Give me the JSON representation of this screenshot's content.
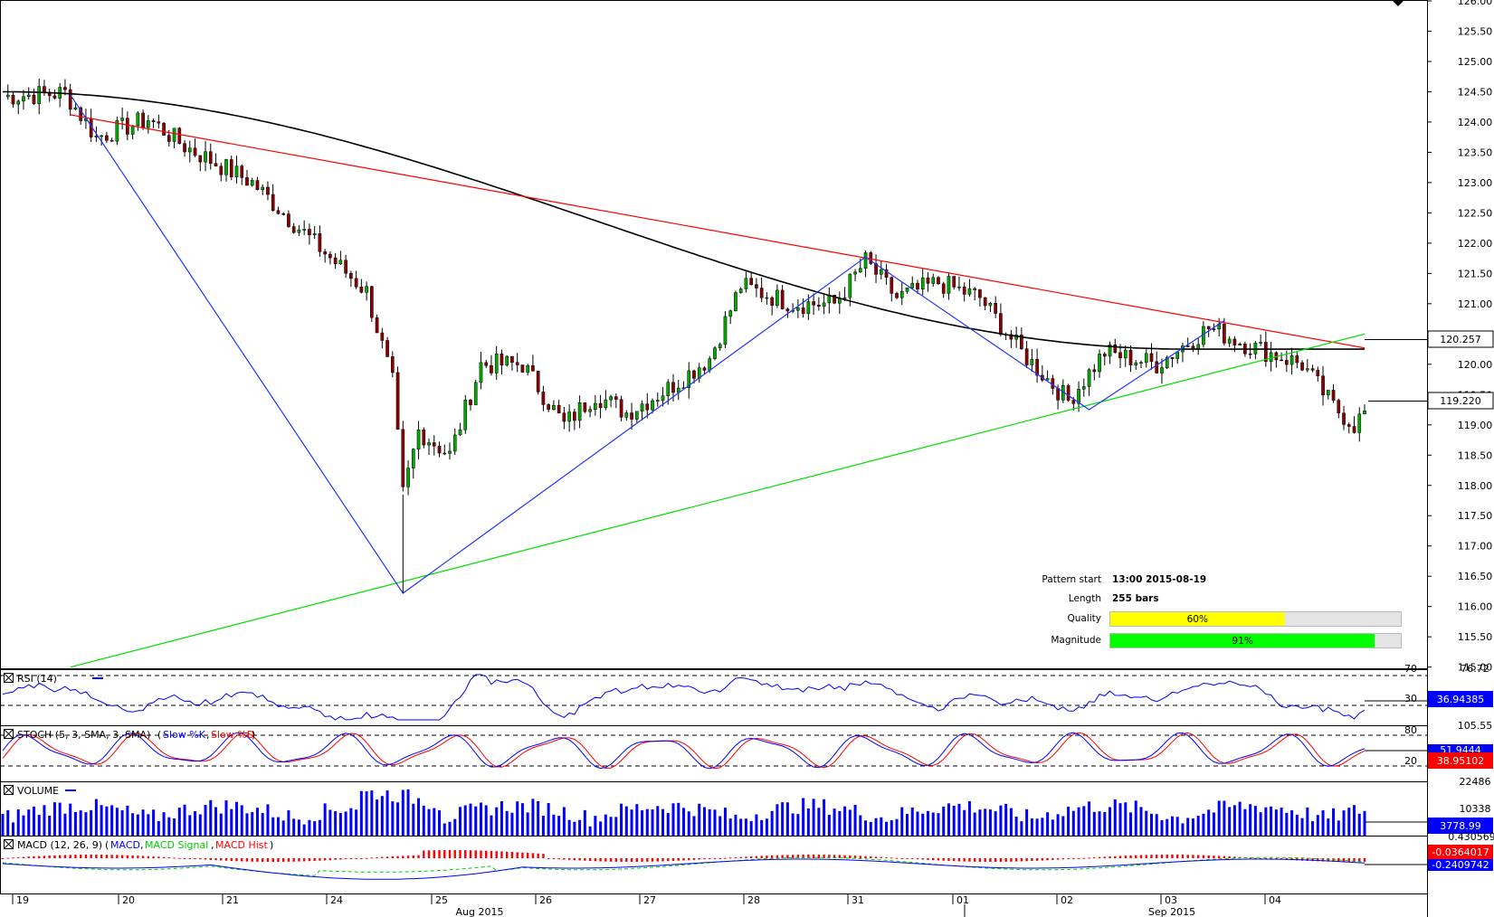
{
  "chart_data": {
    "type": "candlestick",
    "instrument_note": "",
    "price_axis": {
      "ticks": [
        "126.00",
        "125.50",
        "125.00",
        "124.50",
        "124.00",
        "123.50",
        "123.00",
        "122.50",
        "122.00",
        "121.50",
        "121.00",
        "120.50",
        "120.00",
        "119.50",
        "119.00",
        "118.50",
        "118.00",
        "117.50",
        "117.00",
        "116.50",
        "116.00",
        "115.50",
        "115.00"
      ],
      "ylim": [
        114.98,
        126.0
      ],
      "current_price": "119.220",
      "ma_value": "120.257"
    },
    "time_axis": {
      "days": [
        "19",
        "20",
        "21",
        "24",
        "25",
        "26",
        "27",
        "28",
        "31",
        "01",
        "02",
        "03",
        "04"
      ],
      "months": [
        "Aug 2015",
        "Sep 2015"
      ]
    },
    "ohlc_anchor_path": [
      {
        "bar": 0,
        "price": 124.42
      },
      {
        "bar": 12,
        "price": 124.48
      },
      {
        "bar": 18,
        "price": 123.75
      },
      {
        "bar": 28,
        "price": 124.05
      },
      {
        "bar": 35,
        "price": 123.6
      },
      {
        "bar": 48,
        "price": 123.0
      },
      {
        "bar": 60,
        "price": 122.0
      },
      {
        "bar": 70,
        "price": 121.2
      },
      {
        "bar": 75,
        "price": 119.7
      },
      {
        "bar": 77,
        "price": 117.85
      },
      {
        "bar": 80,
        "price": 118.9
      },
      {
        "bar": 86,
        "price": 118.5
      },
      {
        "bar": 92,
        "price": 120.0
      },
      {
        "bar": 100,
        "price": 120.0
      },
      {
        "bar": 108,
        "price": 119.0
      },
      {
        "bar": 114,
        "price": 119.5
      },
      {
        "bar": 120,
        "price": 119.2
      },
      {
        "bar": 128,
        "price": 119.6
      },
      {
        "bar": 136,
        "price": 120.1
      },
      {
        "bar": 142,
        "price": 121.3
      },
      {
        "bar": 152,
        "price": 121.0
      },
      {
        "bar": 160,
        "price": 121.0
      },
      {
        "bar": 166,
        "price": 121.7
      },
      {
        "bar": 172,
        "price": 121.1
      },
      {
        "bar": 180,
        "price": 121.35
      },
      {
        "bar": 188,
        "price": 121.1
      },
      {
        "bar": 196,
        "price": 120.2
      },
      {
        "bar": 205,
        "price": 119.4
      },
      {
        "bar": 212,
        "price": 120.2
      },
      {
        "bar": 222,
        "price": 120.0
      },
      {
        "bar": 232,
        "price": 120.6
      },
      {
        "bar": 240,
        "price": 120.3
      },
      {
        "bar": 250,
        "price": 120.0
      },
      {
        "bar": 256,
        "price": 119.3
      },
      {
        "bar": 260,
        "price": 119.0
      },
      {
        "bar": 262,
        "price": 119.2
      }
    ],
    "zigzag_pattern": [
      {
        "bar": 13,
        "price": 124.45
      },
      {
        "bar": 77,
        "price": 116.22
      },
      {
        "bar": 166,
        "price": 121.77
      },
      {
        "bar": 209,
        "price": 119.25
      },
      {
        "bar": 235,
        "price": 120.72
      }
    ],
    "resistance_line": {
      "from": {
        "bar": 13,
        "price": 124.12
      },
      "to": {
        "bar": 262,
        "price": 120.27
      },
      "color": "#ff0000"
    },
    "support_line": {
      "from": {
        "bar": 13,
        "price": 115.0
      },
      "to": {
        "bar": 262,
        "price": 120.5
      },
      "color": "#00dd00"
    },
    "moving_average": {
      "color": "#000000"
    },
    "pattern_info": {
      "pattern_start_label": "Pattern start",
      "pattern_start_value": "13:00 2015-08-19",
      "length_label": "Length",
      "length_value": "255 bars",
      "quality_label": "Quality",
      "quality_value": "60%",
      "quality_fraction": 0.6,
      "magnitude_label": "Magnitude",
      "magnitude_value": "91%",
      "magnitude_fraction": 0.91
    },
    "indicators": {
      "rsi": {
        "title": "RSI (14)",
        "axis_top": "76.72",
        "level_high": "70",
        "level_low": "30",
        "value": "36.94385"
      },
      "stoch": {
        "title": "STOCH (5, 3, SMA, 3, SMA)",
        "k_label": "Slow %K",
        "d_label": "Slow %D",
        "axis_top": "105.55",
        "level_high": "80",
        "level_low": "20",
        "value_k": "51.9444",
        "value_d": "38.95102"
      },
      "volume": {
        "title": "VOLUME",
        "axis_top": "22486",
        "axis_mid": "10338",
        "value": "3778.99"
      },
      "macd": {
        "title": "MACD (12, 26, 9)",
        "macd_label": "MACD",
        "signal_label": "MACD Signal",
        "hist_label": "MACD Hist",
        "axis_top": "0.4305694",
        "value_macd": "-0.0364017",
        "value_signal": "-0.2409742"
      }
    },
    "colors": {
      "bull": "#00aa00",
      "bear": "#8b0000",
      "zigzag": "#2233ff",
      "resistance": "#ff0000",
      "support": "#00dd00",
      "rsi": "#0000ff",
      "stoch_k": "#0000ff",
      "stoch_d": "#ff0000",
      "volume": "#0000ff",
      "macd": "#0000ff",
      "signal": "#00cc00",
      "hist": "#ff0000",
      "quality_fill": "#ffff00",
      "magnitude_fill": "#00ff00",
      "red_badge": "#ff0000",
      "blue_badge": "#0000ff"
    }
  }
}
